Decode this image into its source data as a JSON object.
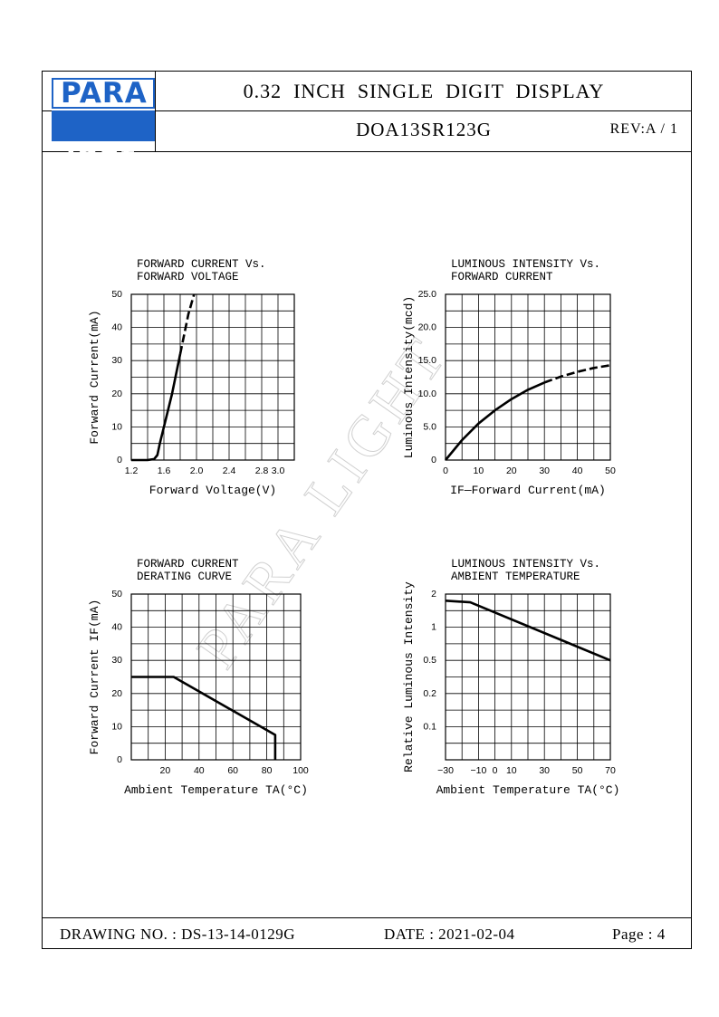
{
  "header": {
    "logo_top": "PARA",
    "logo_bottom": "ight",
    "title": "0.32  INCH  SINGLE  DIGIT  DISPLAY",
    "part_number": "DOA13SR123G",
    "revision": "REV:A / 1"
  },
  "watermark": "PARA LIGHT",
  "footer": {
    "drawing_no": "DRAWING NO. : DS-13-14-0129G",
    "date": "DATE : 2021-02-04",
    "page": "Page : 4"
  },
  "colors": {
    "logo_blue": "#1e63c6",
    "watermark": "#d0d0d0"
  },
  "chart_data": [
    {
      "type": "line",
      "title": [
        "FORWARD  CURRENT  Vs.",
        "FORWARD  VOLTAGE"
      ],
      "xlabel": "Forward  Voltage(V)",
      "ylabel": "Forward  Current(mA)",
      "xlim": [
        1.2,
        3.2
      ],
      "ylim": [
        0,
        50
      ],
      "xticks": [
        1.2,
        1.6,
        2.0,
        2.4,
        2.8,
        3.0
      ],
      "xtick_labels": [
        "1.2",
        "1.6",
        "2.0",
        "2.4",
        "2.8",
        "3.0"
      ],
      "yticks": [
        0,
        10,
        20,
        30,
        40,
        50
      ],
      "ytick_labels": [
        "0",
        "10",
        "20",
        "30",
        "40",
        "50"
      ],
      "grid": true,
      "series": [
        {
          "style": "solid",
          "x": [
            1.2,
            1.4,
            1.48,
            1.52,
            1.55,
            1.6,
            1.7,
            1.8
          ],
          "y": [
            0,
            0,
            0.3,
            1.5,
            5,
            10,
            20,
            32
          ]
        },
        {
          "style": "dashed",
          "x": [
            1.8,
            1.9,
            1.97
          ],
          "y": [
            32,
            44,
            50
          ]
        }
      ]
    },
    {
      "type": "line",
      "title": [
        "LUMINOUS  INTENSITY  Vs.",
        "FORWARD  CURRENT"
      ],
      "xlabel": "IF—Forward  Current(mA)",
      "ylabel": "Luminous  Intensity(mcd)",
      "xlim": [
        0,
        50
      ],
      "ylim": [
        0,
        25
      ],
      "xticks": [
        0,
        10,
        20,
        30,
        40,
        50
      ],
      "xtick_labels": [
        "0",
        "10",
        "20",
        "30",
        "40",
        "50"
      ],
      "yticks": [
        0,
        5,
        10,
        15,
        20,
        25
      ],
      "ytick_labels": [
        "0",
        "5.0",
        "10.0",
        "15.0",
        "20.0",
        "25.0"
      ],
      "grid": true,
      "series": [
        {
          "style": "solid",
          "x": [
            0,
            5,
            10,
            15,
            20,
            25,
            30
          ],
          "y": [
            0,
            3.0,
            5.5,
            7.5,
            9.2,
            10.6,
            11.7
          ]
        },
        {
          "style": "dashed",
          "x": [
            30,
            35,
            40,
            45,
            50
          ],
          "y": [
            11.7,
            12.6,
            13.3,
            13.9,
            14.3
          ]
        }
      ]
    },
    {
      "type": "line",
      "title": [
        "FORWARD  CURRENT",
        "DERATING  CURVE"
      ],
      "xlabel": "Ambient  Temperature  TA(°C)",
      "ylabel": "Forward  Current  IF(mA)",
      "xlim": [
        0,
        100
      ],
      "ylim": [
        0,
        50
      ],
      "xticks": [
        20,
        40,
        60,
        80,
        100
      ],
      "xtick_labels": [
        "20",
        "40",
        "60",
        "80",
        "100"
      ],
      "yticks": [
        0,
        10,
        20,
        30,
        40,
        50
      ],
      "ytick_labels": [
        "0",
        "10",
        "20",
        "30",
        "40",
        "50"
      ],
      "grid": true,
      "series": [
        {
          "style": "solid",
          "x": [
            0,
            25,
            85,
            85
          ],
          "y": [
            25,
            25,
            7.5,
            0
          ]
        }
      ]
    },
    {
      "type": "line",
      "title": [
        "LUMINOUS  INTENSITY  Vs.",
        "AMBIENT  TEMPERATURE"
      ],
      "xlabel": "Ambient  Temperature  TA(°C)",
      "ylabel": "Relative  Luminous  Intensity",
      "xlim": [
        -30,
        70
      ],
      "ylim": [
        0,
        5
      ],
      "xticks": [
        -30,
        -10,
        0,
        10,
        30,
        50,
        70
      ],
      "xtick_labels": [
        "−30",
        "−10",
        "0",
        "10",
        "30",
        "50",
        "70"
      ],
      "yticks": [
        1,
        2,
        3,
        4,
        5
      ],
      "ytick_labels": [
        "0.1",
        "0.2",
        "0.5",
        "1",
        "2"
      ],
      "yscale": "log",
      "grid": true,
      "series": [
        {
          "style": "solid",
          "x": [
            -30,
            -15,
            70
          ],
          "y": [
            4.8,
            4.75,
            3.0
          ]
        }
      ]
    }
  ]
}
